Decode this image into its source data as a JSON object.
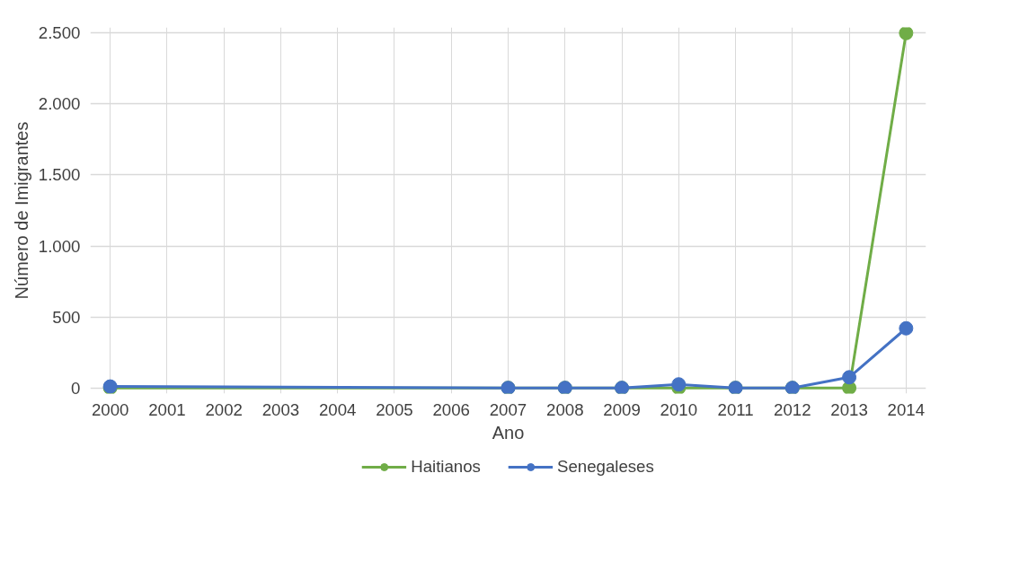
{
  "chart_data": {
    "type": "line",
    "xlabel": "Ano",
    "ylabel": "Número de Imigrantes",
    "xlim": [
      2000,
      2014
    ],
    "xticks": [
      2000,
      2001,
      2002,
      2003,
      2004,
      2005,
      2006,
      2007,
      2008,
      2009,
      2010,
      2011,
      2012,
      2013,
      2014
    ],
    "ylim": [
      0,
      2500
    ],
    "yticks": [
      {
        "value": 0,
        "label": "0"
      },
      {
        "value": 500,
        "label": "500"
      },
      {
        "value": 1000,
        "label": "1.000"
      },
      {
        "value": 1500,
        "label": "1.500"
      },
      {
        "value": 2000,
        "label": "2.000"
      },
      {
        "value": 2500,
        "label": "2.500"
      }
    ],
    "grid": true,
    "legend": "bottom",
    "marker": "circle",
    "line_style": "solid",
    "series": [
      {
        "name": "Haitianos",
        "color": "#70ad47",
        "x": [
          2000,
          2007,
          2008,
          2009,
          2010,
          2011,
          2012,
          2013,
          2014
        ],
        "values": [
          0,
          0,
          0,
          0,
          0,
          0,
          0,
          0,
          2500
        ]
      },
      {
        "name": "Senegaleses",
        "color": "#4472c4",
        "x": [
          2000,
          2007,
          2008,
          2009,
          2010,
          2011,
          2012,
          2013,
          2014
        ],
        "values": [
          10,
          0,
          0,
          0,
          25,
          0,
          0,
          75,
          420
        ]
      }
    ]
  }
}
